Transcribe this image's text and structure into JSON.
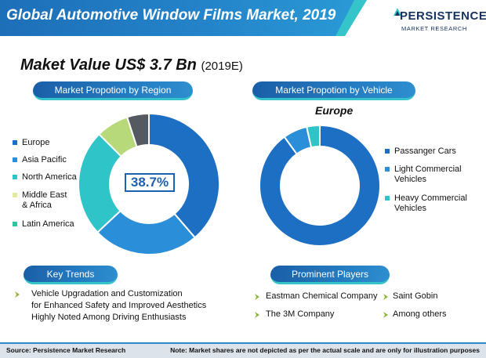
{
  "header": {
    "title": "Global Automotive Window Films Market, 2019"
  },
  "logo": {
    "name": "PERSISTENCE",
    "tagline": "MARKET RESEARCH"
  },
  "market_value": {
    "label": "Maket Value US$ 3.7 Bn",
    "year": "(2019E)"
  },
  "colors": {
    "europe": "#1d6fc4",
    "asia_pacific": "#2a8fd8",
    "north_america": "#2ec4c8",
    "middle_east_africa": "#b7d97a",
    "latin_america": "#555a60",
    "arrow": "#8ab636"
  },
  "sections": {
    "region": "Market Propotion by Region",
    "vehicle": "Market Propotion by Vehicle",
    "trends": "Key Trends",
    "players": "Prominent Players"
  },
  "chart_data": [
    {
      "type": "pie",
      "title": "Market Propotion by Region",
      "categories": [
        "Europe",
        "Asia Pacific",
        "North America",
        "Middle East & Africa",
        "Latin America"
      ],
      "values": [
        38.7,
        24.3,
        24.5,
        7.5,
        5.0
      ],
      "colors": [
        "#1d6fc4",
        "#2a8fd8",
        "#2ec4c8",
        "#b7d97a",
        "#555a60"
      ],
      "donut": true,
      "center_label": "38.7%",
      "legend_position": "left"
    },
    {
      "type": "pie",
      "title": "Market Propotion by Vehicle",
      "subtitle": "Europe",
      "categories": [
        "Passanger Cars",
        "Light Commercial Vehicles",
        "Heavy Commercial Vehicles"
      ],
      "values": [
        90,
        6.5,
        3.5
      ],
      "colors": [
        "#1d6fc4",
        "#2a8fd8",
        "#2ec4c8"
      ],
      "donut": true,
      "legend_position": "right"
    }
  ],
  "region_legend": [
    "Europe",
    "Asia Pacific",
    "North America",
    "Middle East",
    "& Africa",
    "Latin America"
  ],
  "vehicle_legend": [
    "Passanger Cars",
    "Light Commercial",
    "Vehicles",
    "Heavy Commercial",
    "Vehicles"
  ],
  "trends": [
    "Vehicle Upgradation and Customization",
    "for Enhanced Safety and Improved Aesthetics",
    "Highly Noted Among Driving Enthusiasts"
  ],
  "players": [
    "Eastman Chemical Company",
    "Saint Gobin",
    "The 3M Company",
    "Among others"
  ],
  "footer": {
    "source": "Source: Persistence Market Research",
    "note": "Note: Market shares are not depicted as per the actual scale and are only for illustration purposes"
  }
}
